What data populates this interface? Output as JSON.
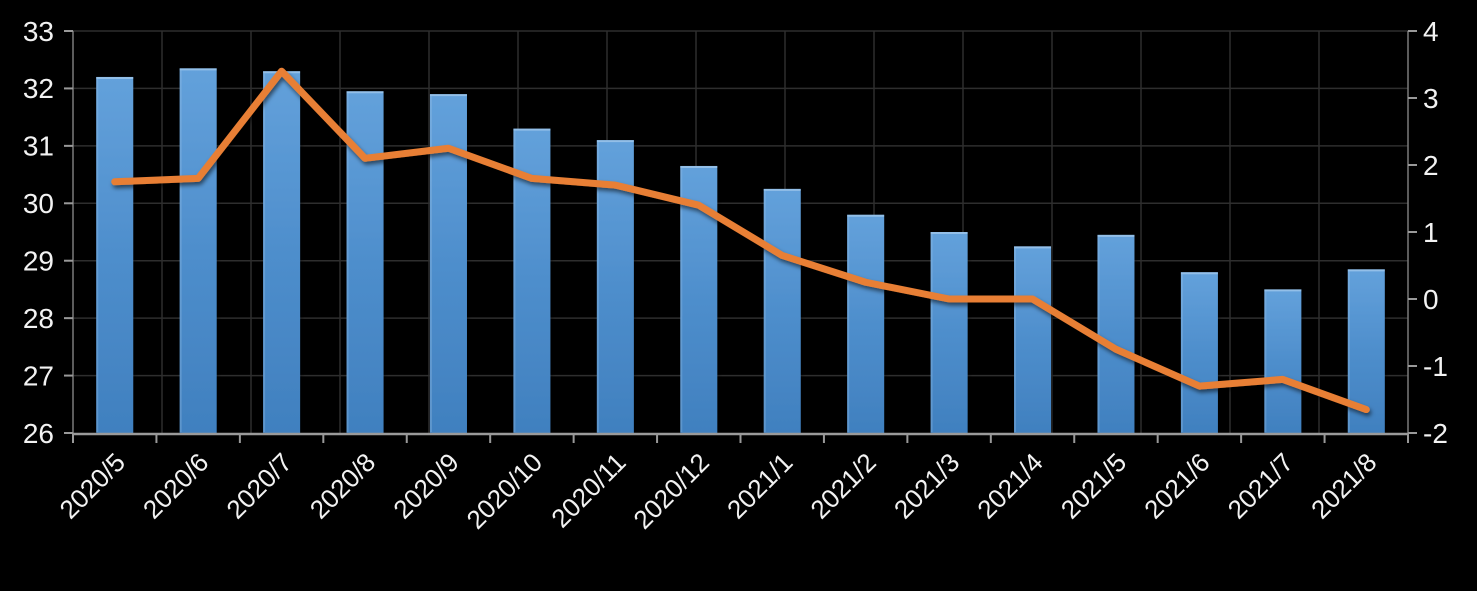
{
  "chart_data": {
    "type": "combo",
    "title": "",
    "legend": "none",
    "background": "#000000",
    "categories": [
      "2020/5",
      "2020/6",
      "2020/7",
      "2020/8",
      "2020/9",
      "2020/10",
      "2020/11",
      "2020/12",
      "2021/1",
      "2021/2",
      "2021/3",
      "2021/4",
      "2021/5",
      "2021/6",
      "2021/7",
      "2021/8"
    ],
    "series": [
      {
        "name": "bar-series",
        "type": "bar",
        "axis": "left",
        "color_top": "#63A1DB",
        "color_mid": "#4E8ECC",
        "color_bottom": "#4080BF",
        "values": [
          32.2,
          32.35,
          32.3,
          31.95,
          31.9,
          31.3,
          31.1,
          30.65,
          30.25,
          29.8,
          29.5,
          29.25,
          29.45,
          28.8,
          28.5,
          28.85
        ]
      },
      {
        "name": "line-series",
        "type": "line",
        "axis": "right",
        "color": "#E87F35",
        "values": [
          1.75,
          1.8,
          3.4,
          2.1,
          2.25,
          1.8,
          1.7,
          1.4,
          0.65,
          0.25,
          0.0,
          0.0,
          -0.75,
          -1.3,
          -1.2,
          -1.65
        ]
      }
    ],
    "left_axis": {
      "min": 26,
      "max": 33,
      "step": 1,
      "tick_labels": [
        "33",
        "32",
        "31",
        "30",
        "29",
        "28",
        "27",
        "26"
      ]
    },
    "right_axis": {
      "min": -2,
      "max": 4,
      "step": 1,
      "tick_labels": [
        "4",
        "3",
        "2",
        "1",
        "0",
        "-1",
        "-2"
      ]
    },
    "x_axis": {
      "label_rotation": -45,
      "tick_labels": [
        "2020/5",
        "2020/6",
        "2020/7",
        "2020/8",
        "2020/9",
        "2020/10",
        "2020/11",
        "2020/12",
        "2021/1",
        "2021/2",
        "2021/3",
        "2021/4",
        "2021/5",
        "2021/6",
        "2021/7",
        "2021/8"
      ]
    },
    "grid": {
      "horizontal": true,
      "vertical": true,
      "color": "#2E2E2E"
    },
    "axis_color": "#7A7A7A",
    "x_axis_line_color": "#9A9A9A",
    "tick_color": "#999999",
    "label_color": "#F2F2F2"
  }
}
